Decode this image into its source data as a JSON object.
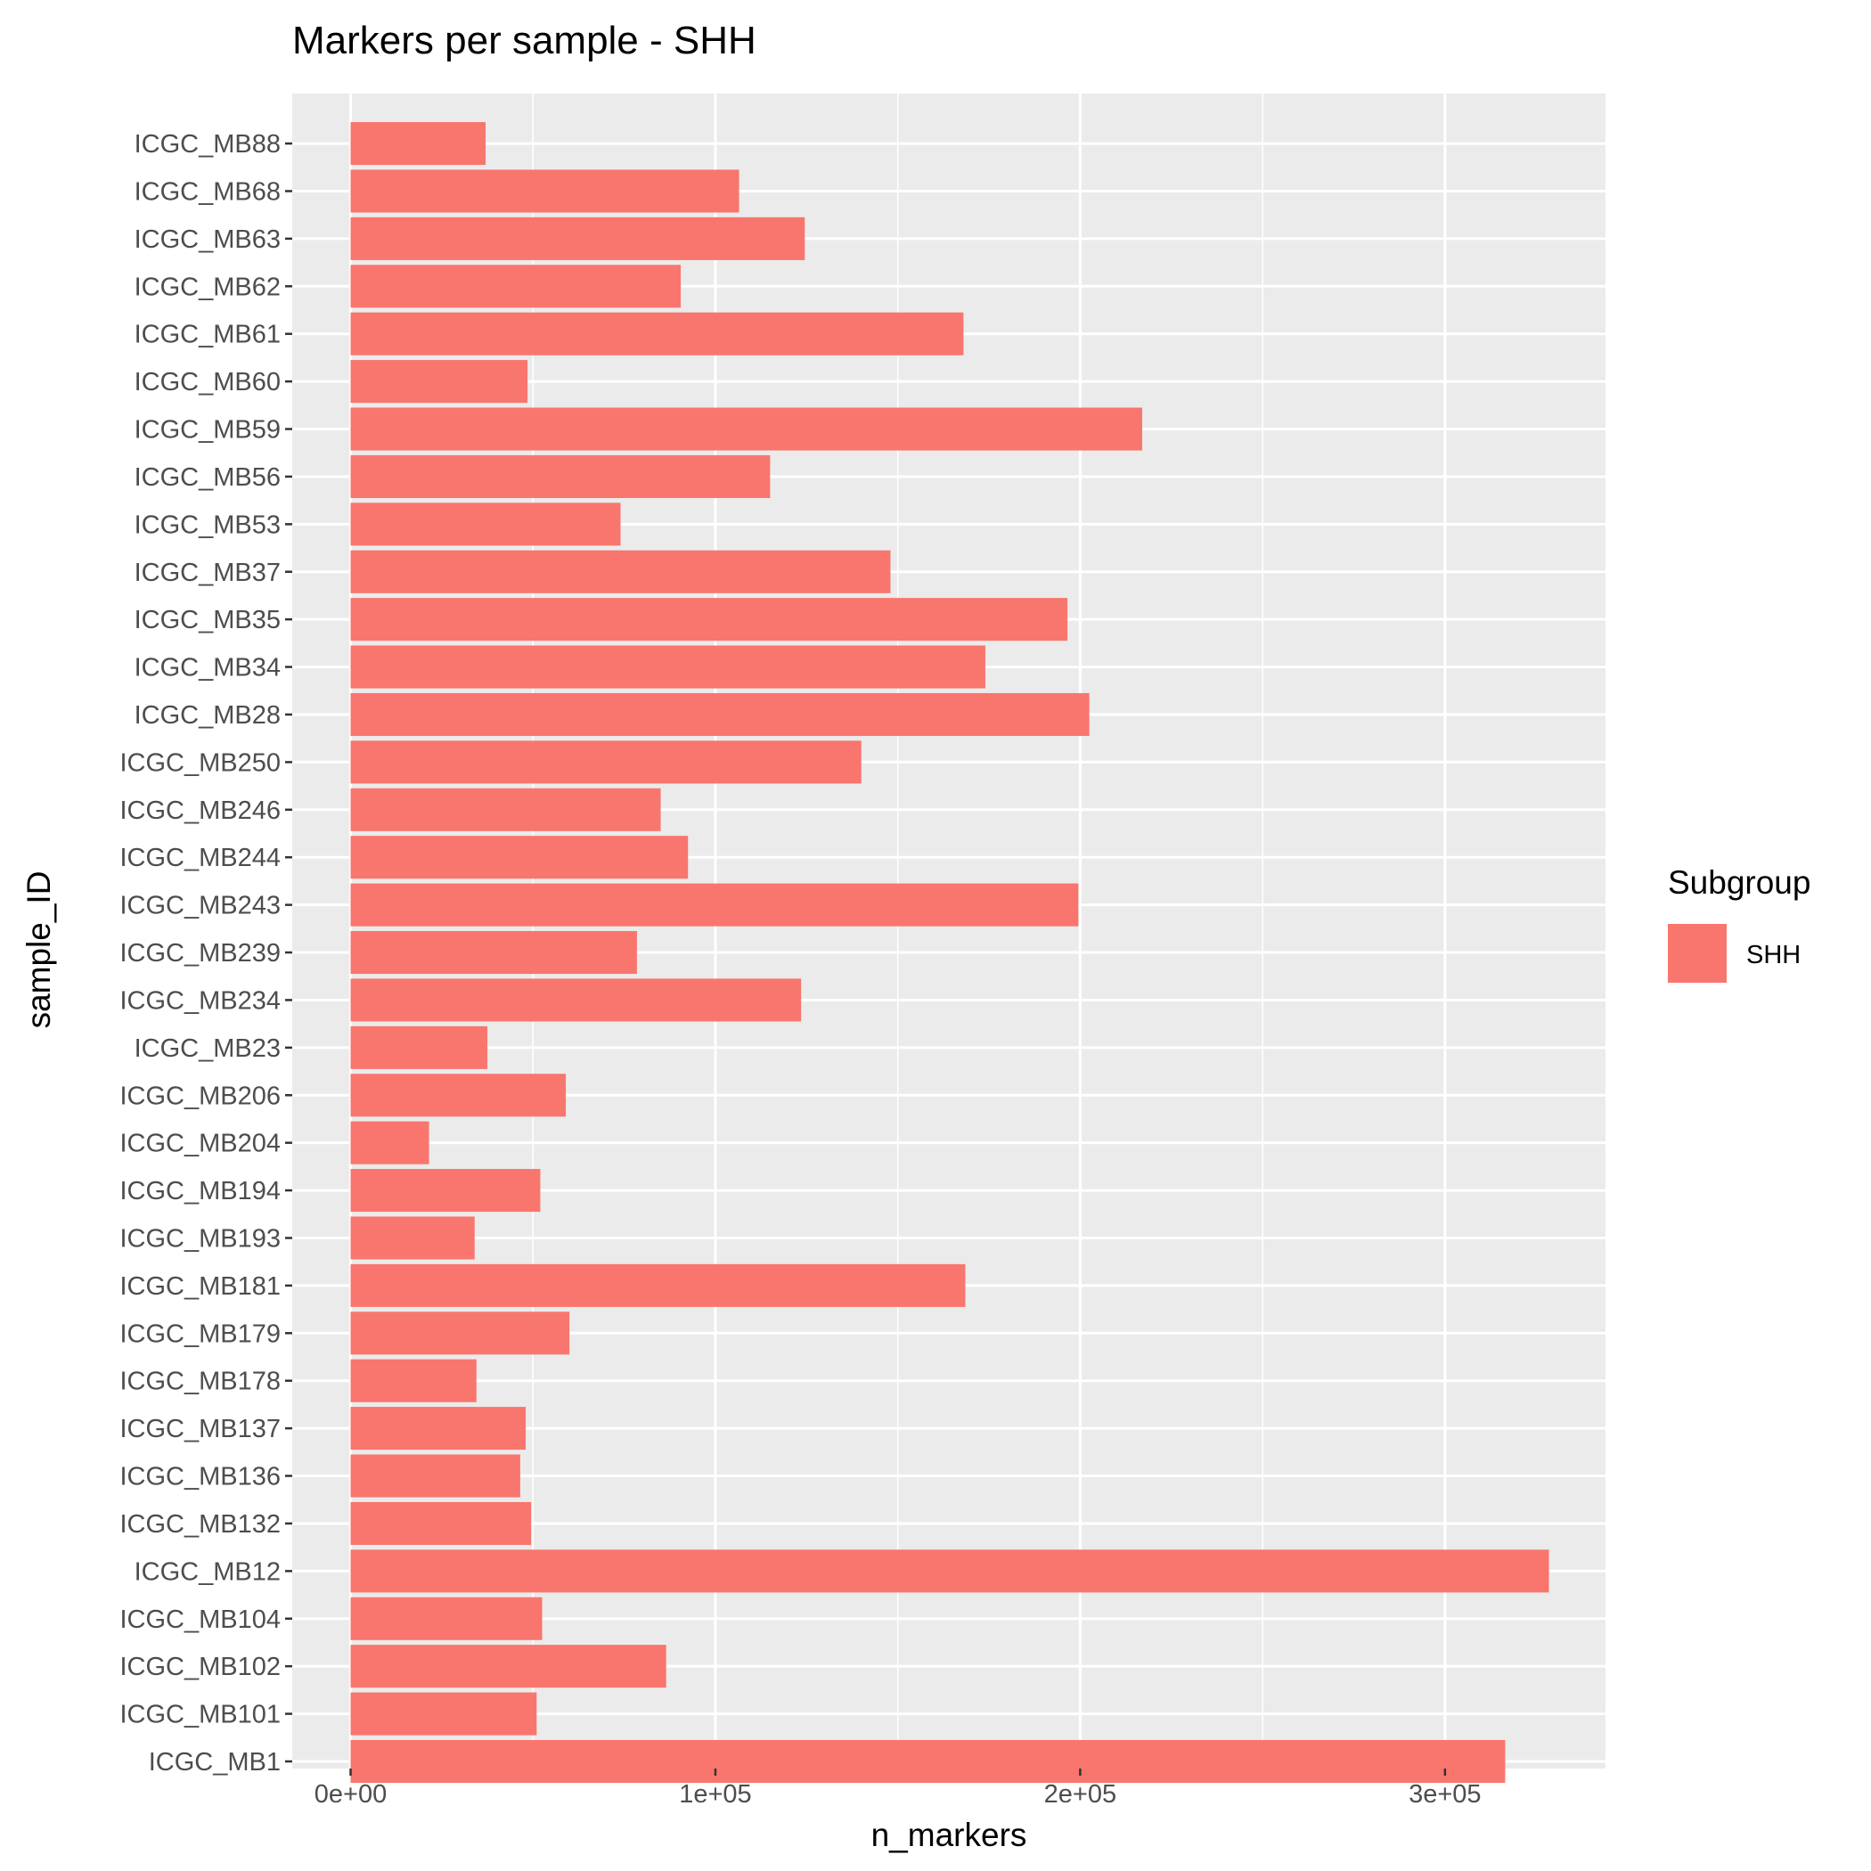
{
  "chart_data": {
    "type": "bar",
    "orientation": "horizontal",
    "title": "Markers per sample - SHH",
    "xlabel": "n_markers",
    "ylabel": "sample_ID",
    "xlim": [
      -16000,
      344000
    ],
    "x_ticks": [
      {
        "value": 0,
        "label": "0e+00"
      },
      {
        "value": 100000,
        "label": "1e+05"
      },
      {
        "value": 200000,
        "label": "2e+05"
      },
      {
        "value": 300000,
        "label": "3e+05"
      }
    ],
    "x_minor_ticks": [
      50000,
      150000,
      250000
    ],
    "categories": [
      "ICGC_MB88",
      "ICGC_MB68",
      "ICGC_MB63",
      "ICGC_MB62",
      "ICGC_MB61",
      "ICGC_MB60",
      "ICGC_MB59",
      "ICGC_MB56",
      "ICGC_MB53",
      "ICGC_MB37",
      "ICGC_MB35",
      "ICGC_MB34",
      "ICGC_MB28",
      "ICGC_MB250",
      "ICGC_MB246",
      "ICGC_MB244",
      "ICGC_MB243",
      "ICGC_MB239",
      "ICGC_MB234",
      "ICGC_MB23",
      "ICGC_MB206",
      "ICGC_MB204",
      "ICGC_MB194",
      "ICGC_MB193",
      "ICGC_MB181",
      "ICGC_MB179",
      "ICGC_MB178",
      "ICGC_MB137",
      "ICGC_MB136",
      "ICGC_MB132",
      "ICGC_MB12",
      "ICGC_MB104",
      "ICGC_MB102",
      "ICGC_MB101",
      "ICGC_MB1"
    ],
    "series": [
      {
        "name": "SHH",
        "color": "#F8766D",
        "values": [
          37000,
          106500,
          124500,
          90500,
          168000,
          48500,
          217000,
          115000,
          74000,
          148000,
          196500,
          174000,
          202500,
          140000,
          85000,
          92500,
          199500,
          78500,
          123500,
          37500,
          59000,
          21500,
          52000,
          34000,
          168500,
          60000,
          34500,
          48000,
          46500,
          49500,
          328500,
          52500,
          86500,
          51000,
          316500
        ]
      }
    ],
    "legend": {
      "title": "Subgroup",
      "position": "right",
      "items": [
        {
          "label": "SHH",
          "color": "#F8766D"
        }
      ]
    },
    "grid": true,
    "colors": {
      "panel_background": "#EBEBEB",
      "grid": "#FFFFFF",
      "tick_text": "#4D4D4D",
      "tick_mark": "#333333"
    }
  }
}
